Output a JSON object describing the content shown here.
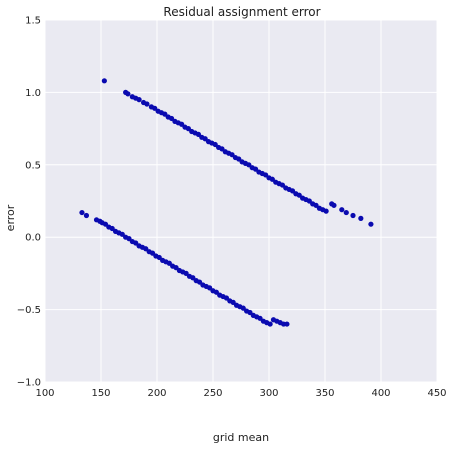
{
  "chart_data": {
    "type": "scatter",
    "title": "Residual assignment error",
    "xlabel": "grid mean",
    "ylabel": "error",
    "xlim": [
      100,
      450
    ],
    "ylim": [
      -1.0,
      1.5
    ],
    "xticks": [
      100,
      150,
      200,
      250,
      300,
      350,
      400,
      450
    ],
    "xtick_labels": [
      "100",
      "150",
      "200",
      "250",
      "300",
      "350",
      "400",
      "450"
    ],
    "yticks": [
      -1.0,
      -0.5,
      0.0,
      0.5,
      1.0,
      1.5
    ],
    "ytick_labels": [
      "−1.0",
      "−0.5",
      "0.0",
      "0.5",
      "1.0",
      "1.5"
    ],
    "grid": true,
    "legend": "none",
    "point_color": "#0a0ab0",
    "background_color": "#eaeaf2",
    "series": [
      {
        "values": [
          [
            153,
            1.08
          ],
          [
            172,
            1.0
          ],
          [
            174,
            0.99
          ],
          [
            178,
            0.97
          ],
          [
            181,
            0.96
          ],
          [
            184,
            0.95
          ],
          [
            188,
            0.93
          ],
          [
            191,
            0.92
          ],
          [
            195,
            0.9
          ],
          [
            198,
            0.89
          ],
          [
            201,
            0.87
          ],
          [
            204,
            0.86
          ],
          [
            207,
            0.85
          ],
          [
            210,
            0.83
          ],
          [
            213,
            0.82
          ],
          [
            216,
            0.8
          ],
          [
            219,
            0.79
          ],
          [
            222,
            0.78
          ],
          [
            225,
            0.76
          ],
          [
            228,
            0.75
          ],
          [
            231,
            0.73
          ],
          [
            234,
            0.72
          ],
          [
            237,
            0.71
          ],
          [
            240,
            0.69
          ],
          [
            243,
            0.68
          ],
          [
            246,
            0.66
          ],
          [
            249,
            0.65
          ],
          [
            252,
            0.64
          ],
          [
            255,
            0.62
          ],
          [
            258,
            0.61
          ],
          [
            261,
            0.59
          ],
          [
            264,
            0.58
          ],
          [
            267,
            0.57
          ],
          [
            270,
            0.55
          ],
          [
            273,
            0.54
          ],
          [
            276,
            0.52
          ],
          [
            279,
            0.51
          ],
          [
            282,
            0.5
          ],
          [
            285,
            0.48
          ],
          [
            288,
            0.47
          ],
          [
            291,
            0.45
          ],
          [
            294,
            0.44
          ],
          [
            297,
            0.43
          ],
          [
            300,
            0.41
          ],
          [
            303,
            0.4
          ],
          [
            306,
            0.38
          ],
          [
            309,
            0.37
          ],
          [
            312,
            0.36
          ],
          [
            315,
            0.34
          ],
          [
            318,
            0.33
          ],
          [
            321,
            0.32
          ],
          [
            324,
            0.3
          ],
          [
            327,
            0.29
          ],
          [
            330,
            0.27
          ],
          [
            333,
            0.26
          ],
          [
            336,
            0.25
          ],
          [
            339,
            0.23
          ],
          [
            342,
            0.22
          ],
          [
            345,
            0.2
          ],
          [
            348,
            0.19
          ],
          [
            351,
            0.18
          ],
          [
            356,
            0.23
          ],
          [
            358,
            0.22
          ],
          [
            365,
            0.19
          ],
          [
            369,
            0.17
          ],
          [
            375,
            0.15
          ],
          [
            382,
            0.13
          ],
          [
            391,
            0.09
          ],
          [
            133,
            0.17
          ],
          [
            137,
            0.15
          ],
          [
            146,
            0.12
          ],
          [
            149,
            0.11
          ],
          [
            151,
            0.1
          ],
          [
            154,
            0.09
          ],
          [
            157,
            0.07
          ],
          [
            160,
            0.06
          ],
          [
            163,
            0.04
          ],
          [
            166,
            0.03
          ],
          [
            169,
            0.02
          ],
          [
            172,
            0.0
          ],
          [
            175,
            -0.01
          ],
          [
            178,
            -0.03
          ],
          [
            181,
            -0.04
          ],
          [
            184,
            -0.06
          ],
          [
            187,
            -0.07
          ],
          [
            190,
            -0.08
          ],
          [
            193,
            -0.1
          ],
          [
            196,
            -0.11
          ],
          [
            199,
            -0.13
          ],
          [
            202,
            -0.14
          ],
          [
            205,
            -0.16
          ],
          [
            208,
            -0.17
          ],
          [
            211,
            -0.18
          ],
          [
            214,
            -0.2
          ],
          [
            217,
            -0.21
          ],
          [
            220,
            -0.23
          ],
          [
            223,
            -0.24
          ],
          [
            226,
            -0.25
          ],
          [
            229,
            -0.27
          ],
          [
            232,
            -0.28
          ],
          [
            235,
            -0.3
          ],
          [
            238,
            -0.31
          ],
          [
            241,
            -0.33
          ],
          [
            244,
            -0.34
          ],
          [
            247,
            -0.35
          ],
          [
            250,
            -0.37
          ],
          [
            253,
            -0.38
          ],
          [
            256,
            -0.4
          ],
          [
            259,
            -0.41
          ],
          [
            262,
            -0.42
          ],
          [
            265,
            -0.44
          ],
          [
            268,
            -0.45
          ],
          [
            271,
            -0.47
          ],
          [
            274,
            -0.48
          ],
          [
            277,
            -0.49
          ],
          [
            280,
            -0.51
          ],
          [
            283,
            -0.52
          ],
          [
            286,
            -0.54
          ],
          [
            289,
            -0.55
          ],
          [
            292,
            -0.56
          ],
          [
            295,
            -0.58
          ],
          [
            298,
            -0.59
          ],
          [
            301,
            -0.6
          ],
          [
            304,
            -0.57
          ],
          [
            307,
            -0.58
          ],
          [
            310,
            -0.59
          ],
          [
            313,
            -0.6
          ],
          [
            316,
            -0.6
          ]
        ]
      }
    ]
  }
}
